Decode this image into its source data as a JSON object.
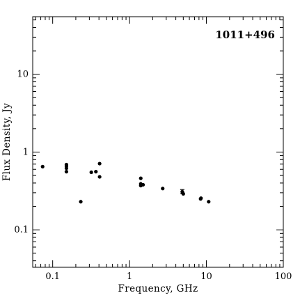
{
  "chart_data": {
    "type": "scatter",
    "title": "1011+496",
    "xlabel": "Frequency, GHz",
    "ylabel": "Flux Density, Jy",
    "xscale": "log",
    "yscale": "log",
    "xlim": [
      0.055,
      100
    ],
    "ylim": [
      0.033,
      55
    ],
    "x_ticks": [
      {
        "value": 0.1,
        "label": "0.1"
      },
      {
        "value": 1,
        "label": "1"
      },
      {
        "value": 10,
        "label": "10"
      },
      {
        "value": 100,
        "label": "100"
      }
    ],
    "y_ticks": [
      {
        "value": 0.1,
        "label": "0.1"
      },
      {
        "value": 1,
        "label": "1"
      },
      {
        "value": 10,
        "label": "10"
      }
    ],
    "title_position": "top-right",
    "grid": false,
    "series": [
      {
        "points": [
          {
            "x": 0.074,
            "y": 0.65
          },
          {
            "x": 0.151,
            "y": 0.69
          },
          {
            "x": 0.151,
            "y": 0.66
          },
          {
            "x": 0.151,
            "y": 0.62
          },
          {
            "x": 0.151,
            "y": 0.56
          },
          {
            "x": 0.232,
            "y": 0.23
          },
          {
            "x": 0.318,
            "y": 0.55
          },
          {
            "x": 0.365,
            "y": 0.56
          },
          {
            "x": 0.408,
            "y": 0.71
          },
          {
            "x": 0.408,
            "y": 0.48
          },
          {
            "x": 1.4,
            "y": 0.46
          },
          {
            "x": 1.4,
            "y": 0.39
          },
          {
            "x": 1.4,
            "y": 0.37
          },
          {
            "x": 1.5,
            "y": 0.38
          },
          {
            "x": 2.7,
            "y": 0.34
          },
          {
            "x": 4.85,
            "y": 0.31,
            "err_low": 0.29,
            "err_high": 0.33
          },
          {
            "x": 4.9,
            "y": 0.3
          },
          {
            "x": 5.0,
            "y": 0.29
          },
          {
            "x": 8.4,
            "y": 0.25
          },
          {
            "x": 8.5,
            "y": 0.255
          },
          {
            "x": 10.7,
            "y": 0.23
          }
        ]
      }
    ]
  }
}
